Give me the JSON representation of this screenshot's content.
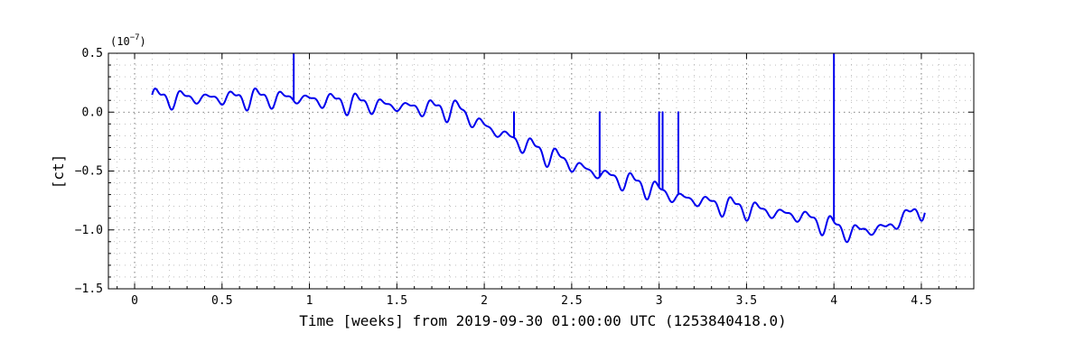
{
  "chart_data": {
    "type": "line",
    "xlabel": "Time [weeks] from 2019-09-30 01:00:00 UTC (1253840418.0)",
    "ylabel": "[ct]",
    "y_exponent_label": "(10",
    "y_exponent_power": "−7",
    "y_exponent_close": ")",
    "xlim": [
      -0.15,
      4.8
    ],
    "ylim": [
      -1.5,
      0.5
    ],
    "x_ticks": [
      0,
      0.5,
      1,
      1.5,
      2,
      2.5,
      3,
      3.5,
      4,
      4.5
    ],
    "x_tick_labels": [
      "0",
      "0.5",
      "1",
      "1.5",
      "2",
      "2.5",
      "3",
      "3.5",
      "4",
      "4.5"
    ],
    "y_ticks": [
      -1.5,
      -1.0,
      -0.5,
      0.0,
      0.5
    ],
    "y_tick_labels": [
      "−1.5",
      "−1.0",
      "−0.5",
      "0.0",
      "0.5"
    ],
    "grid": true,
    "line_color": "#0000ee",
    "series": [
      {
        "x_start": 0.1,
        "x_end": 4.52,
        "trend_points": [
          [
            0.1,
            0.12
          ],
          [
            0.9,
            0.12
          ],
          [
            1.5,
            0.05
          ],
          [
            1.85,
            0.02
          ],
          [
            2.0,
            -0.12
          ],
          [
            2.3,
            -0.32
          ],
          [
            2.6,
            -0.5
          ],
          [
            2.9,
            -0.62
          ],
          [
            3.1,
            -0.72
          ],
          [
            3.4,
            -0.8
          ],
          [
            3.8,
            -0.88
          ],
          [
            4.1,
            -1.02
          ],
          [
            4.3,
            -0.98
          ],
          [
            4.52,
            -0.8
          ]
        ],
        "oscillation_period_weeks": 0.143,
        "oscillation_amplitude": 0.1,
        "spikes": [
          {
            "x": 0.91,
            "y": 0.5
          },
          {
            "x": 2.17,
            "y": 0.0
          },
          {
            "x": 2.66,
            "y": 0.0
          },
          {
            "x": 3.0,
            "y": 0.0
          },
          {
            "x": 3.02,
            "y": 0.0
          },
          {
            "x": 3.11,
            "y": 0.0
          },
          {
            "x": 4.0,
            "y": 0.5
          }
        ]
      }
    ]
  }
}
